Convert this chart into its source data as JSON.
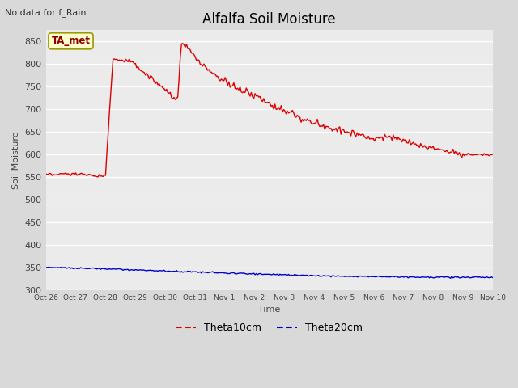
{
  "title": "Alfalfa Soil Moisture",
  "subtitle": "No data for f_Rain",
  "xlabel": "Time",
  "ylabel": "Soil Moisture",
  "ylim": [
    300,
    875
  ],
  "yticks": [
    300,
    350,
    400,
    450,
    500,
    550,
    600,
    650,
    700,
    750,
    800,
    850
  ],
  "fig_bg": "#d9d9d9",
  "plot_bg": "#ebebeb",
  "grid_color": "#ffffff",
  "legend_labels": [
    "Theta10cm",
    "Theta20cm"
  ],
  "legend_colors": [
    "#dd0000",
    "#0000cc"
  ],
  "ta_met_label": "TA_met",
  "ta_met_box_facecolor": "#ffffcc",
  "ta_met_box_edgecolor": "#999900",
  "ta_met_text_color": "#880000",
  "subtitle_color": "#333333",
  "xtick_labels": [
    "Oct 26",
    "Oct 27",
    "Oct 28",
    "Oct 29",
    "Oct 30",
    "Oct 31",
    "Nov 1",
    "Nov 2",
    "Nov 3",
    "Nov 4",
    "Nov 5",
    "Nov 6",
    "Nov 7",
    "Nov 8",
    "Nov 9",
    "Nov 10"
  ],
  "title_fontsize": 12,
  "subtitle_fontsize": 8,
  "axis_label_fontsize": 8,
  "tick_fontsize": 8,
  "legend_fontsize": 9
}
